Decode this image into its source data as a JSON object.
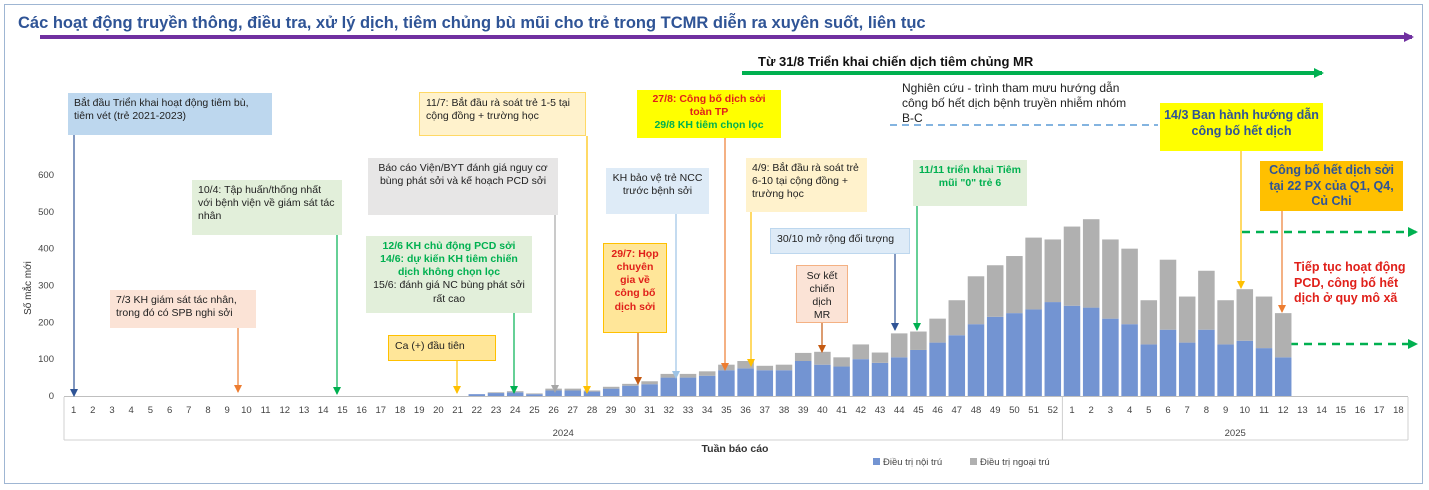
{
  "banner_top": "Các hoạt động truyền thông, điều tra, xử lý dịch, tiêm chủng bù mũi cho trẻ trong TCMR diễn ra xuyên suốt, liên tục",
  "banner_mr": "Từ 31/8 Triển khai chiến dịch tiêm chủng MR",
  "research_note": "Nghiên cứu - trình tham mưu hướng dẫn công bố hết dịch bệnh truyền nhiễm nhóm B-C",
  "annotations": {
    "a1": "Bắt đầu Triển khai hoạt động tiêm bù, tiêm vét (trẻ 2021-2023)",
    "a2": "7/3 KH giám sát tác nhân, trong đó có SPB nghi sởi",
    "a3": "10/4: Tập huấn/thống nhất với bệnh viện về  giám sát tác nhân",
    "a4": "Báo cáo Viện/BYT đánh giá nguy cơ bùng phát sởi và kế hoạch PCD sởi",
    "a5_line1": "12/6 KH chủ động PCD sởi",
    "a5_line2": "14/6: dự kiến KH tiêm chiến dịch không chọn lọc",
    "a5_line3": "15/6: đánh giá NC bùng phát sởi rất cao",
    "a6": "Ca (+) đầu tiên",
    "a7": "11/7: Bắt đầu rà soát trẻ 1-5 tại cộng đồng + trường học",
    "a8": "29/7: Họp chuyên gia về công bố dịch sởi",
    "a9_line1": "27/8: Công bố dịch sởi toàn TP",
    "a9_line2": "29/8 KH tiêm chọn lọc",
    "a10": "KH bảo vệ trẻ NCC trước bệnh sởi",
    "a11": "4/9: Bắt đầu rà soát trẻ 6-10 tại cộng đồng + trường học",
    "a12": "30/10 mở rộng đối tượng",
    "a13": "Sơ kết chiến dịch MR",
    "a14": "11/11 triển khai Tiêm mũi \"0\" trẻ 6",
    "a15": "14/3 Ban hành hướng dẫn công bố hết dịch",
    "a16": "Công bố hết dịch sởi tại 22 PX của Q1, Q4, Củ Chi",
    "a17": "Tiếp tục hoạt động PCD, công bố hết dịch ở quy mô xã"
  },
  "colors": {
    "inpatient": "#7394d2",
    "outpatient": "#b0b0b0",
    "title_blue": "#2f5496",
    "purple": "#7030a0",
    "green": "#00b050",
    "red": "#e0201a",
    "gold": "#ffc000",
    "yellow": "#ffff00"
  },
  "chart_data": {
    "type": "bar",
    "stacked": true,
    "xlabel": "Tuần báo cáo",
    "ylabel": "Số mắc mới",
    "ylim": [
      0,
      600
    ],
    "yticks": [
      0,
      100,
      200,
      300,
      400,
      500,
      600
    ],
    "years": [
      {
        "label": "2024",
        "weeks": 52
      },
      {
        "label": "2025",
        "weeks": 18
      }
    ],
    "categories": [
      "1",
      "2",
      "3",
      "4",
      "5",
      "6",
      "7",
      "8",
      "9",
      "10",
      "11",
      "12",
      "13",
      "14",
      "15",
      "16",
      "17",
      "18",
      "19",
      "20",
      "21",
      "22",
      "23",
      "24",
      "25",
      "26",
      "27",
      "28",
      "29",
      "30",
      "31",
      "32",
      "33",
      "34",
      "35",
      "36",
      "37",
      "38",
      "39",
      "40",
      "41",
      "42",
      "43",
      "44",
      "45",
      "46",
      "47",
      "48",
      "49",
      "50",
      "51",
      "52",
      "1",
      "2",
      "3",
      "4",
      "5",
      "6",
      "7",
      "8",
      "9",
      "10",
      "11",
      "12",
      "13",
      "14",
      "15",
      "16",
      "17",
      "18"
    ],
    "series": [
      {
        "name": "Điều trị nội trú",
        "values": [
          0,
          0,
          0,
          0,
          0,
          0,
          0,
          0,
          0,
          0,
          0,
          0,
          0,
          0,
          0,
          0,
          0,
          0,
          0,
          0,
          0,
          5,
          8,
          10,
          5,
          15,
          15,
          12,
          20,
          28,
          32,
          50,
          50,
          55,
          70,
          75,
          70,
          70,
          95,
          85,
          80,
          100,
          90,
          105,
          125,
          145,
          165,
          195,
          215,
          225,
          235,
          255,
          245,
          240,
          210,
          195,
          140,
          180,
          145,
          180,
          140,
          150,
          130,
          105,
          0,
          0,
          0,
          0,
          0,
          0
        ]
      },
      {
        "name": "Điều trị ngoại trú",
        "values": [
          0,
          0,
          0,
          0,
          0,
          0,
          0,
          0,
          0,
          0,
          0,
          0,
          0,
          0,
          0,
          0,
          0,
          0,
          0,
          0,
          0,
          0,
          2,
          3,
          2,
          5,
          5,
          3,
          5,
          5,
          8,
          10,
          10,
          12,
          15,
          20,
          12,
          15,
          22,
          35,
          25,
          40,
          28,
          65,
          50,
          65,
          95,
          130,
          140,
          155,
          195,
          170,
          215,
          240,
          215,
          205,
          120,
          190,
          125,
          160,
          120,
          140,
          140,
          120,
          0,
          0,
          0,
          0,
          0,
          0
        ]
      }
    ]
  }
}
